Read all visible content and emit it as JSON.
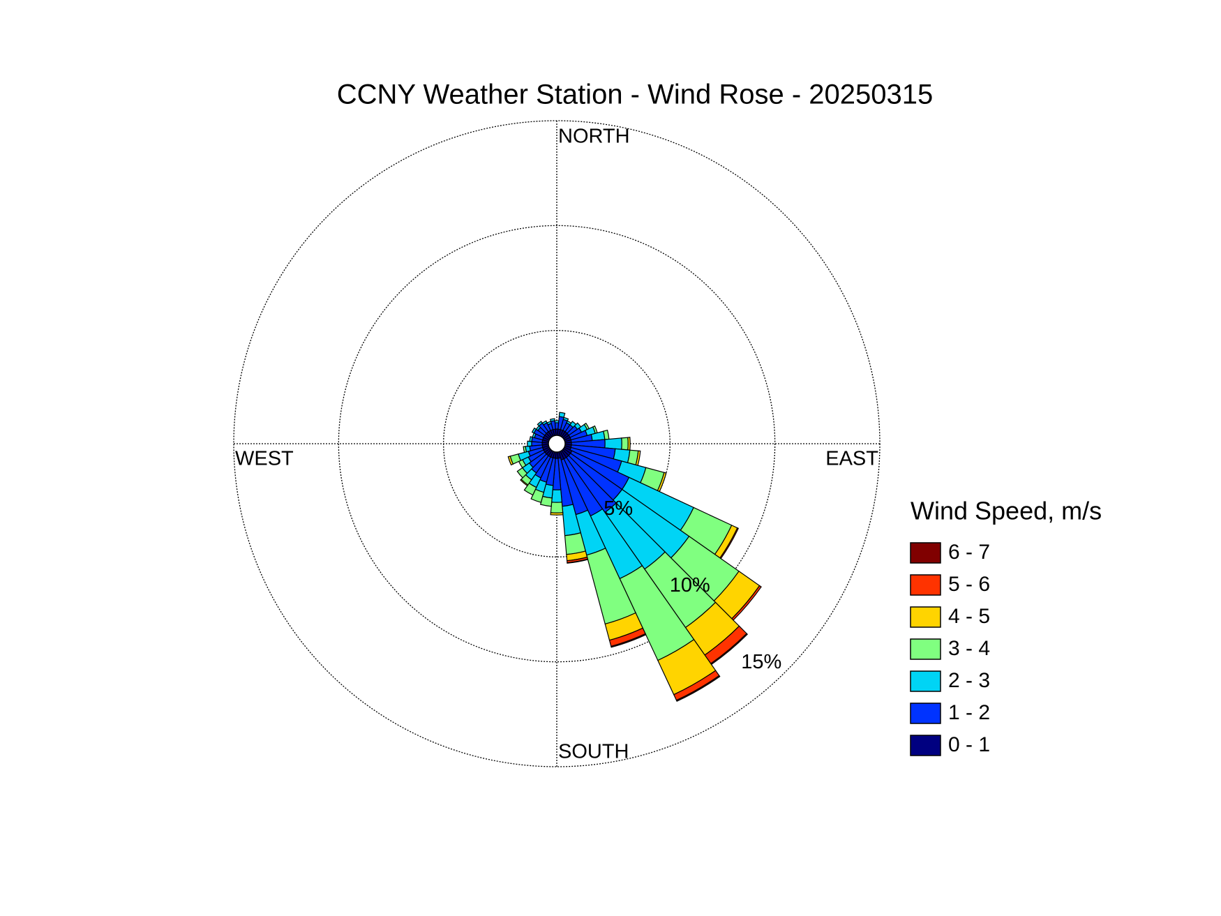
{
  "chart_data": {
    "type": "windrose",
    "title": "CCNY Weather Station - Wind Rose - 20250315",
    "direction_labels": [
      "NORTH",
      "EAST",
      "SOUTH",
      "WEST"
    ],
    "legend_title": "Wind Speed, m/s",
    "legend_position": "right",
    "grid": true,
    "rlim": [
      0,
      15
    ],
    "rticks": [
      {
        "value": 5,
        "label": "5%"
      },
      {
        "value": 10,
        "label": "10%"
      },
      {
        "value": 15,
        "label": "15%"
      }
    ],
    "x": [
      0,
      10,
      20,
      30,
      40,
      50,
      60,
      70,
      80,
      90,
      100,
      110,
      120,
      130,
      140,
      150,
      160,
      170,
      180,
      190,
      200,
      210,
      220,
      230,
      240,
      250,
      260,
      270,
      280,
      290,
      300,
      310,
      320,
      330,
      340,
      350
    ],
    "series": [
      {
        "name": "0 - 1",
        "color": "#000080",
        "values": [
          0.3,
          0.3,
          0.3,
          0.3,
          0.3,
          0.3,
          0.3,
          0.3,
          0.3,
          0.3,
          0.3,
          0.3,
          0.4,
          0.4,
          0.4,
          0.4,
          0.4,
          0.3,
          0.3,
          0.3,
          0.3,
          0.3,
          0.3,
          0.3,
          0.3,
          0.3,
          0.3,
          0.3,
          0.3,
          0.3,
          0.3,
          0.3,
          0.3,
          0.3,
          0.3,
          0.3
        ]
      },
      {
        "name": "1 - 2",
        "color": "#0033ff",
        "values": [
          0.3,
          0.6,
          0.5,
          0.4,
          0.4,
          0.5,
          0.6,
          0.8,
          1.0,
          1.6,
          2.1,
          2.5,
          3.0,
          3.0,
          3.2,
          3.0,
          2.7,
          2.3,
          1.5,
          1.3,
          1.2,
          1.1,
          1.0,
          0.9,
          0.8,
          0.7,
          0.6,
          0.5,
          0.5,
          0.4,
          0.5,
          0.4,
          0.5,
          0.4,
          0.3,
          0.4
        ]
      },
      {
        "name": "2 - 3",
        "color": "#00d4f5",
        "values": [
          0.1,
          0.2,
          0.1,
          0.1,
          0.2,
          0.2,
          0.3,
          0.4,
          0.6,
          0.8,
          0.7,
          1.2,
          3.4,
          3.9,
          3.3,
          3.3,
          2.0,
          1.4,
          0.6,
          0.6,
          0.5,
          0.5,
          0.4,
          0.4,
          0.3,
          0.5,
          0.2,
          0.2,
          0.1,
          0.1,
          0.1,
          0.1,
          0.1,
          0.1,
          0.1,
          0.1
        ]
      },
      {
        "name": "3 - 4",
        "color": "#80ff80",
        "values": [
          0,
          0,
          0,
          0,
          0,
          0,
          0.1,
          0.1,
          0.2,
          0.3,
          0.4,
          0.9,
          2.0,
          2.9,
          3.4,
          4.3,
          3.4,
          0.9,
          0.5,
          0.4,
          0.5,
          0.4,
          0.3,
          0.3,
          0.2,
          0.4,
          0.1,
          0,
          0,
          0,
          0,
          0,
          0,
          0,
          0,
          0
        ]
      },
      {
        "name": "4 - 5",
        "color": "#ffd400",
        "values": [
          0,
          0,
          0,
          0,
          0,
          0,
          0,
          0,
          0,
          0.1,
          0.1,
          0.1,
          0.3,
          1.2,
          1.6,
          1.8,
          0.8,
          0.3,
          0.1,
          0,
          0,
          0,
          0.05,
          0,
          0,
          0.1,
          0,
          0,
          0,
          0,
          0,
          0,
          0,
          0,
          0,
          0
        ]
      },
      {
        "name": "5 - 6",
        "color": "#ff3300",
        "values": [
          0,
          0,
          0,
          0,
          0,
          0,
          0,
          0,
          0,
          0,
          0,
          0,
          0.05,
          0.1,
          0.5,
          0.3,
          0.3,
          0.1,
          0,
          0,
          0,
          0,
          0,
          0,
          0,
          0,
          0,
          0,
          0,
          0,
          0,
          0,
          0,
          0,
          0,
          0
        ]
      },
      {
        "name": "6 - 7",
        "color": "#800000",
        "values": [
          0,
          0,
          0,
          0,
          0,
          0,
          0,
          0,
          0,
          0,
          0,
          0,
          0,
          0,
          0.05,
          0.05,
          0.05,
          0.02,
          0,
          0,
          0,
          0,
          0,
          0,
          0,
          0,
          0,
          0,
          0,
          0,
          0,
          0,
          0,
          0,
          0,
          0
        ]
      }
    ]
  }
}
